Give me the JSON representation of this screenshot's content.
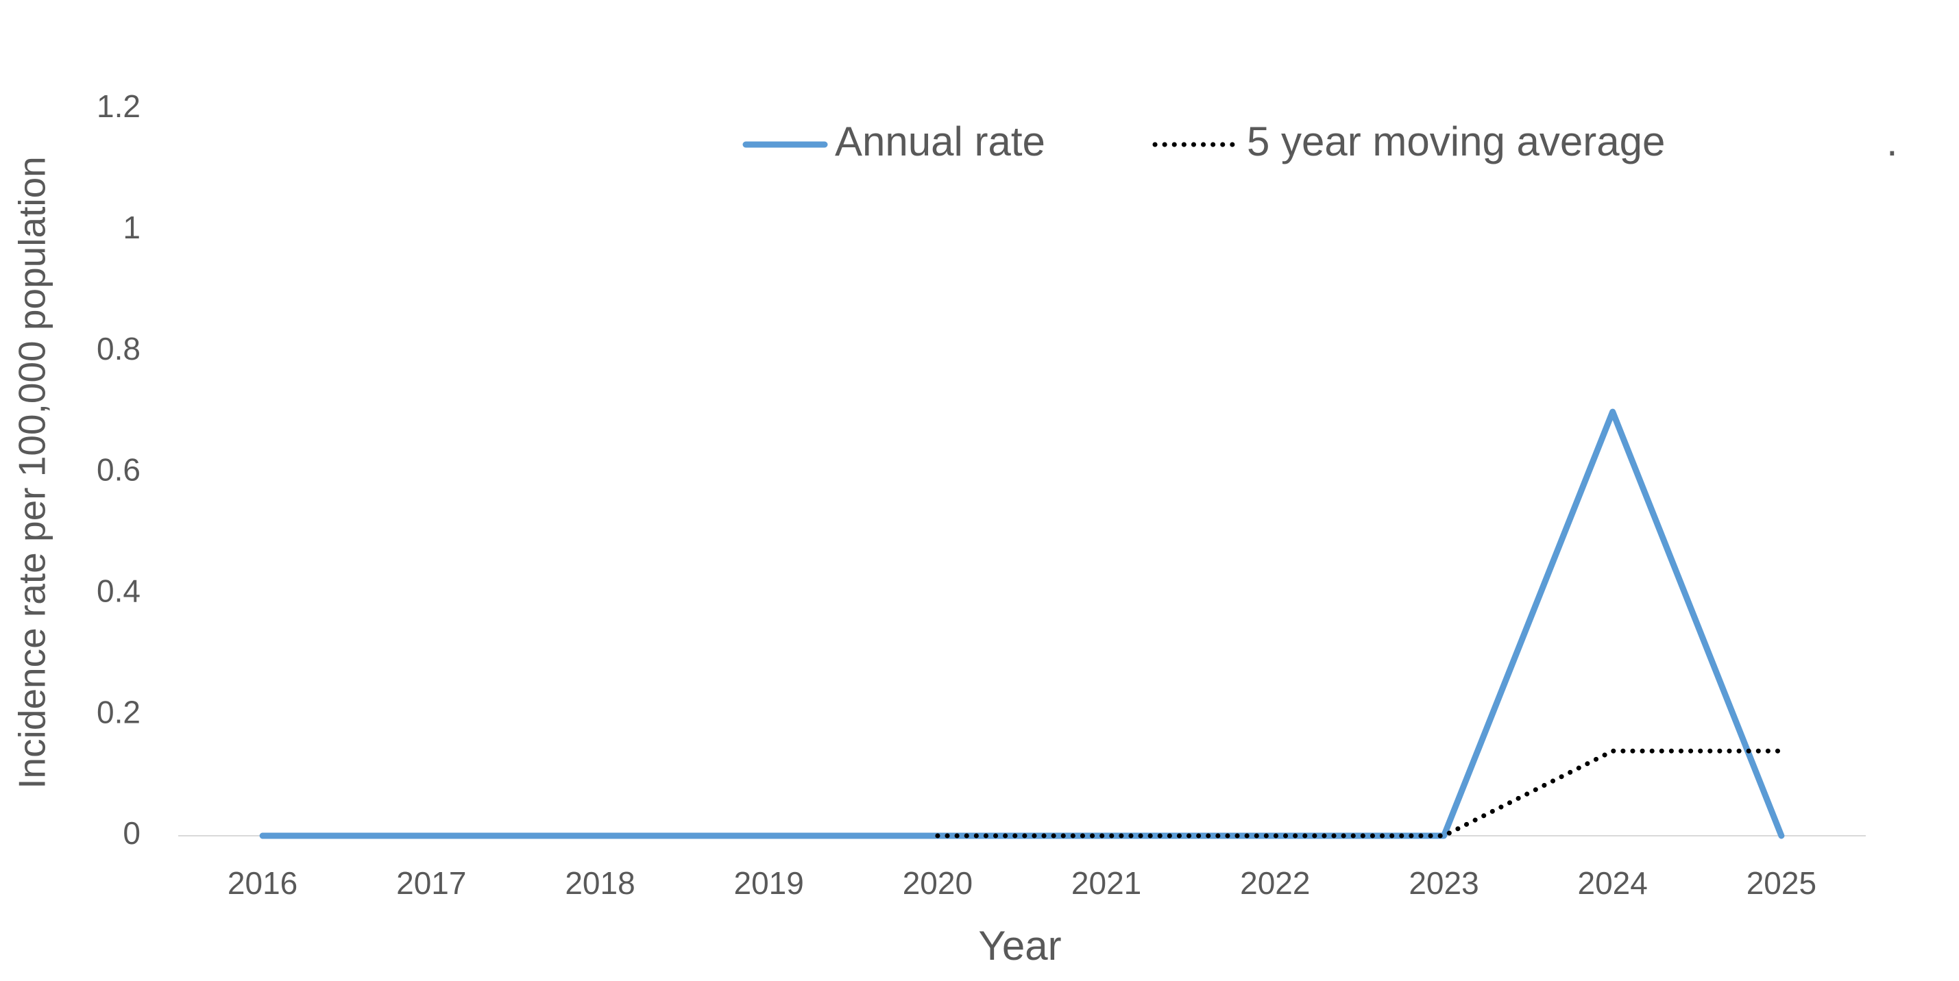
{
  "chart_data": {
    "type": "line",
    "y_axis_label": "Incidence rate per 100,000 population",
    "x_axis_label": "Year",
    "categories": [
      "2016",
      "2017",
      "2018",
      "2019",
      "2020",
      "2021",
      "2022",
      "2023",
      "2024",
      "2025"
    ],
    "series": [
      {
        "name": "Annual rate",
        "color": "#5b9bd5",
        "style": "solid",
        "values": [
          0,
          0,
          0,
          0,
          0,
          0,
          0,
          0,
          0.7,
          0
        ]
      },
      {
        "name": "5 year moving average",
        "color": "#000000",
        "style": "dotted",
        "values": [
          null,
          null,
          null,
          null,
          0,
          0,
          0,
          0,
          0.14,
          0.14
        ]
      }
    ],
    "legend_extra": ".",
    "legend_position": "top",
    "ylim": [
      0,
      1.2
    ],
    "yticks": [
      0,
      0.2,
      0.4,
      0.6,
      0.8,
      1,
      1.2
    ],
    "grid": false
  }
}
